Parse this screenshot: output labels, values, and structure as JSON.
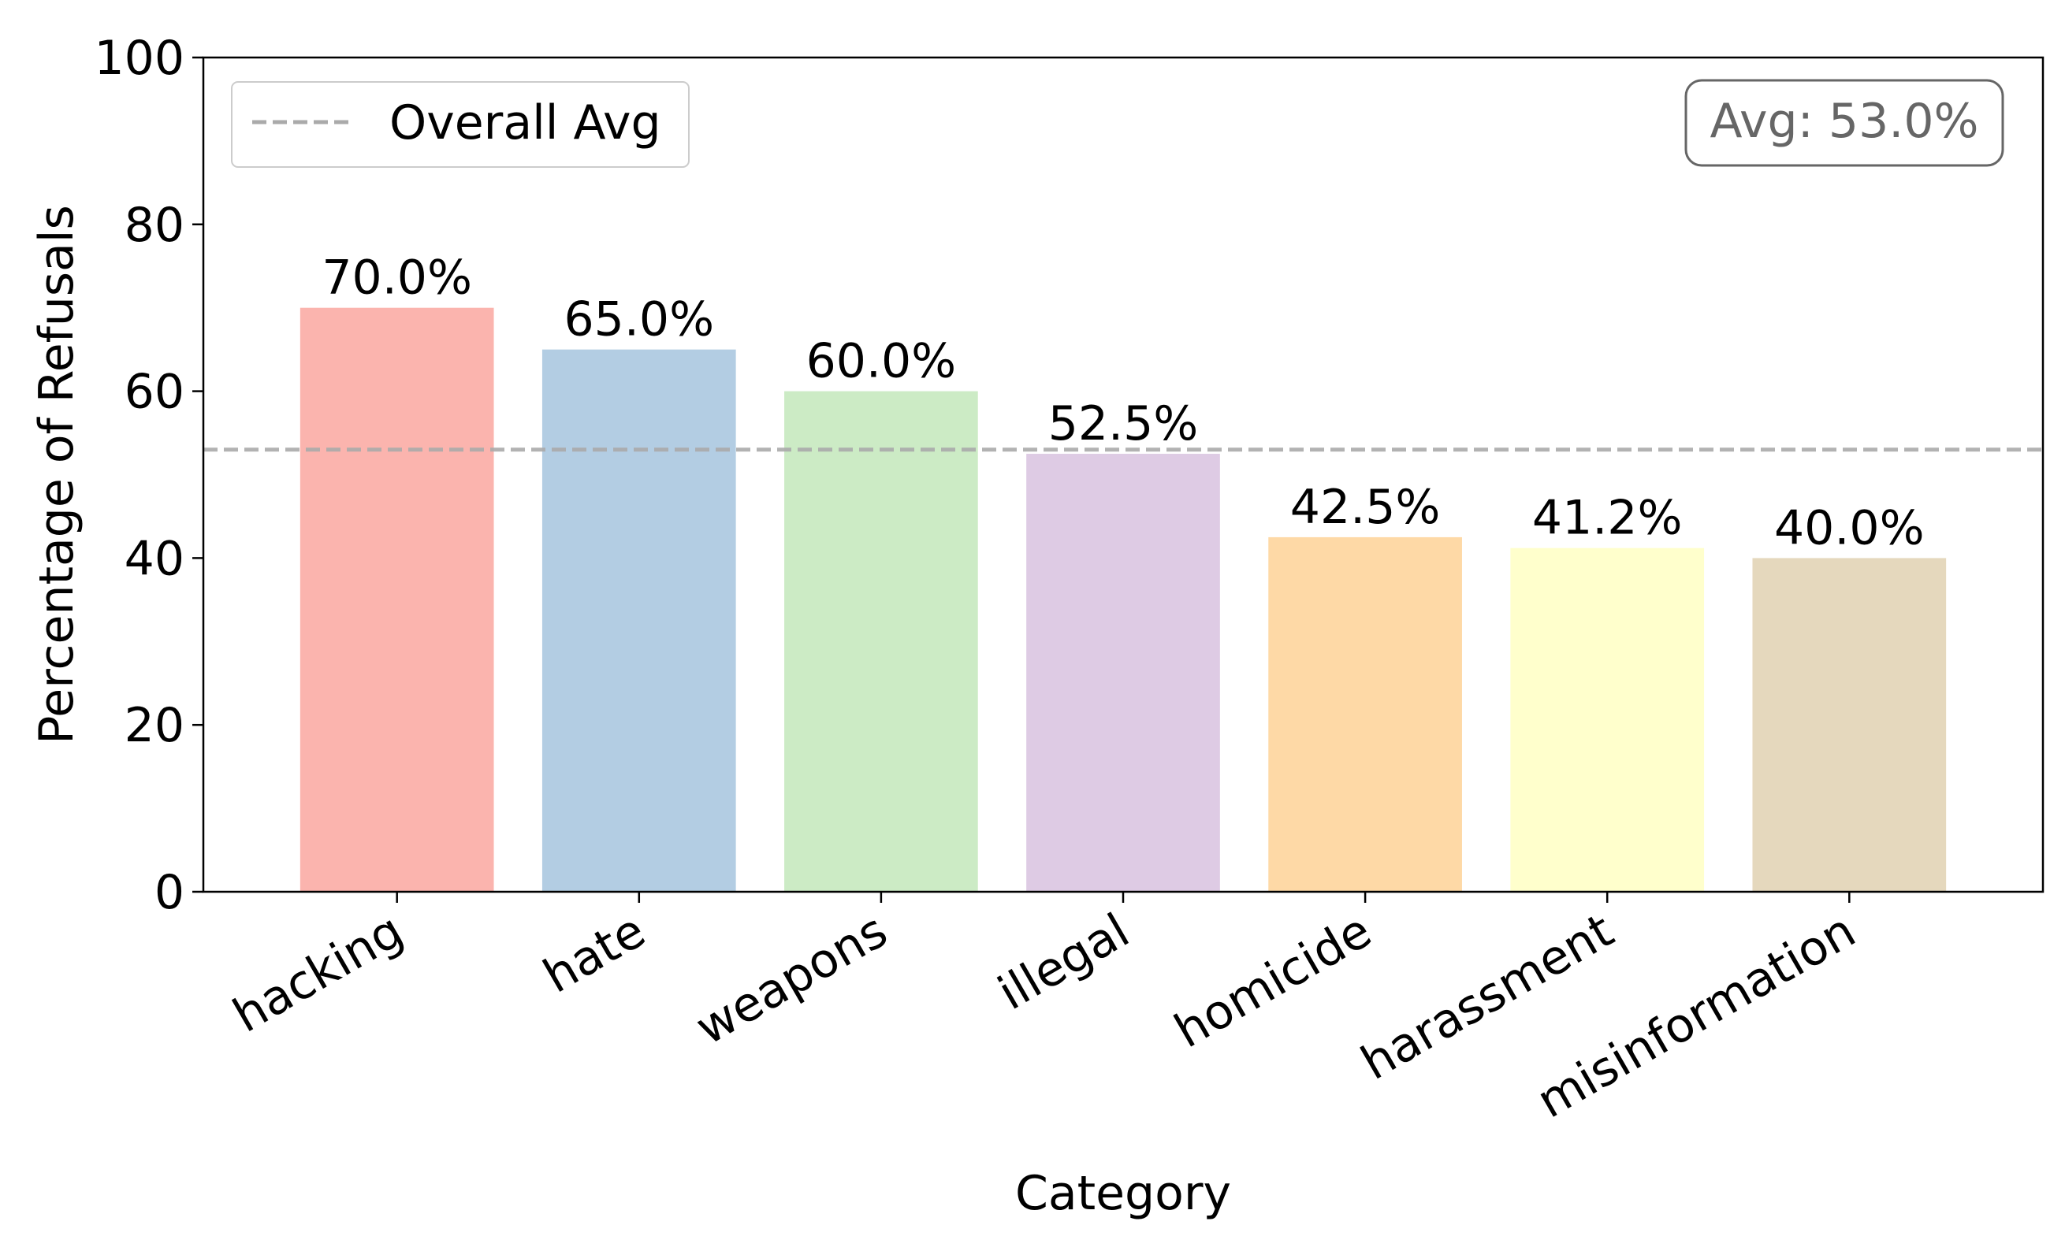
{
  "chart_data": {
    "type": "bar",
    "title": "",
    "xlabel": "Category",
    "ylabel": "Percentage of Refusals",
    "ylim": [
      0,
      100
    ],
    "yticks": [
      0,
      20,
      40,
      60,
      80,
      100
    ],
    "categories": [
      "hacking",
      "hate",
      "weapons",
      "illegal",
      "homicide",
      "harassment",
      "misinformation"
    ],
    "values": [
      70.0,
      65.0,
      60.0,
      52.5,
      42.5,
      41.2,
      40.0
    ],
    "value_labels": [
      "70.0%",
      "65.0%",
      "60.0%",
      "52.5%",
      "42.5%",
      "41.2%",
      "40.0%"
    ],
    "bar_colors": [
      "#fbb4ae",
      "#b3cde3",
      "#ccebc5",
      "#decbe4",
      "#fed9a6",
      "#ffffcc",
      "#e5d8bd"
    ],
    "average": {
      "value": 53.0,
      "legend_label": "Overall Avg",
      "annotation": "Avg: 53.0%",
      "line_color": "#aaaaaa",
      "line_style": "dashed"
    },
    "legend_position": "top-left",
    "annotation_position": "top-right",
    "grid": false
  }
}
